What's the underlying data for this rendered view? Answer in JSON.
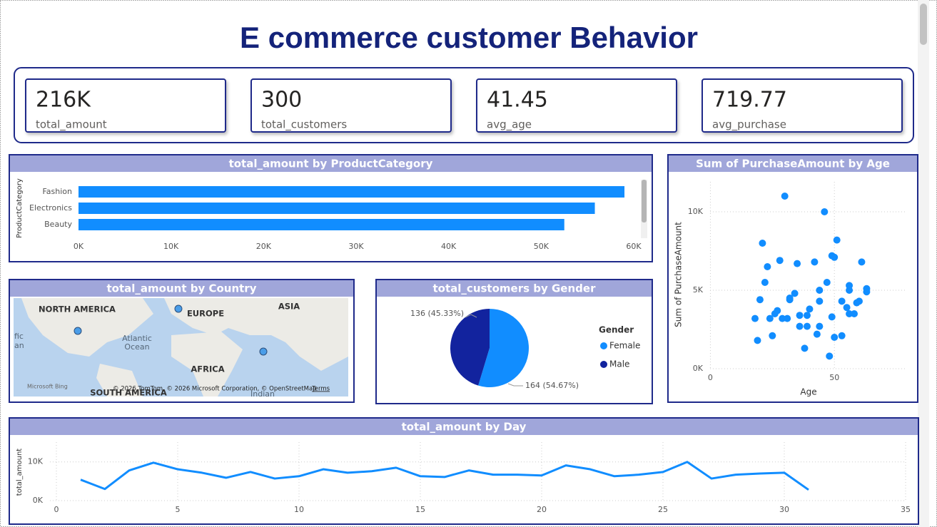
{
  "title": "E commerce customer Behavior",
  "cards": [
    {
      "value": "216K",
      "label": "total_amount"
    },
    {
      "value": "300",
      "label": "total_customers"
    },
    {
      "value": "41.45",
      "label": "avg_age"
    },
    {
      "value": "719.77",
      "label": "avg_purchase"
    }
  ],
  "chart_data": [
    {
      "type": "bar",
      "orientation": "horizontal",
      "title": "total_amount by ProductCategory",
      "y_label": "ProductCategory",
      "categories": [
        "Fashion",
        "Electronics",
        "Beauty"
      ],
      "values": [
        59000,
        55800,
        52500
      ],
      "color": "#118DFF",
      "xlim": [
        0,
        60000
      ],
      "xticks": [
        {
          "value": 0,
          "label": "0K"
        },
        {
          "value": 10000,
          "label": "10K"
        },
        {
          "value": 20000,
          "label": "20K"
        },
        {
          "value": 30000,
          "label": "30K"
        },
        {
          "value": 40000,
          "label": "40K"
        },
        {
          "value": 50000,
          "label": "50K"
        },
        {
          "value": 60000,
          "label": "60K"
        }
      ]
    },
    {
      "type": "scatter",
      "title": "Sum of PurchaseAmount by Age",
      "x_label": "Age",
      "y_label": "Sum of PurchaseAmount",
      "color": "#118DFF",
      "x": [
        30,
        46,
        21,
        51,
        23,
        28,
        35,
        42,
        49,
        50,
        61,
        22,
        47,
        56,
        63,
        34,
        56,
        32,
        44,
        63,
        20,
        32,
        44,
        53,
        60,
        59,
        27,
        26,
        40,
        55,
        18,
        24,
        29,
        31,
        36,
        39,
        56,
        58,
        49,
        36,
        39,
        44,
        25,
        43,
        50,
        53,
        19,
        38,
        48
      ],
      "values": [
        11000,
        10000,
        8000,
        8200,
        6500,
        6900,
        6700,
        6800,
        7200,
        7100,
        6800,
        5500,
        5500,
        5300,
        5100,
        4800,
        5000,
        4500,
        5000,
        4900,
        4400,
        4400,
        4300,
        4300,
        4300,
        4200,
        3700,
        3500,
        3800,
        3900,
        3200,
        3200,
        3200,
        3200,
        3400,
        3400,
        3500,
        3500,
        3300,
        2700,
        2700,
        2700,
        2100,
        2200,
        2000,
        2100,
        1800,
        1300,
        800
      ],
      "xlim": [
        -3,
        79
      ],
      "xticks": [
        0,
        50
      ],
      "ylim": [
        0,
        12000
      ],
      "yticks": [
        {
          "value": 0,
          "label": "0K"
        },
        {
          "value": 5000,
          "label": "5K"
        },
        {
          "value": 10000,
          "label": "10K"
        }
      ],
      "grid": true
    },
    {
      "type": "map",
      "title": "total_amount by Country",
      "labels": [
        "NORTH AMERICA",
        "EUROPE",
        "ASIA",
        "Atlantic",
        "Ocean",
        "AFRICA",
        "SOUTH AMERICA",
        "Indian",
        "fic",
        "an"
      ],
      "attribution": "© 2026 TomTom, © 2026 Microsoft Corporation, © OpenStreetMap",
      "terms": "Terms",
      "logo": "Microsoft Bing"
    },
    {
      "type": "pie",
      "title": "total_customers by Gender",
      "legend_title": "Gender",
      "categories": [
        "Female",
        "Male"
      ],
      "values": [
        164,
        136
      ],
      "value_labels": [
        "164 (54.67%)",
        "136 (45.33%)"
      ],
      "colors": [
        "#118DFF",
        "#12239E"
      ]
    },
    {
      "type": "line",
      "title": "total_amount by Day",
      "y_label": "total_amount",
      "color": "#118DFF",
      "x": [
        1,
        2,
        3,
        4,
        5,
        6,
        7,
        8,
        9,
        10,
        11,
        12,
        13,
        14,
        15,
        16,
        17,
        18,
        19,
        20,
        21,
        22,
        23,
        24,
        25,
        26,
        27,
        28,
        29,
        30,
        31
      ],
      "values": [
        5400,
        3000,
        7800,
        9800,
        8100,
        7200,
        5900,
        7400,
        5700,
        6300,
        8100,
        7200,
        7600,
        8500,
        6300,
        6100,
        7800,
        6700,
        6700,
        6500,
        9100,
        8100,
        6300,
        6700,
        7400,
        10000,
        5700,
        6700,
        7000,
        7200,
        2800
      ],
      "xlim": [
        0,
        35
      ],
      "xticks": [
        0,
        5,
        10,
        15,
        20,
        25,
        30,
        35
      ],
      "ylim": [
        0,
        14000
      ],
      "yticks": [
        {
          "value": 0,
          "label": "0K"
        },
        {
          "value": 10000,
          "label": "10K"
        }
      ],
      "grid": true
    }
  ]
}
